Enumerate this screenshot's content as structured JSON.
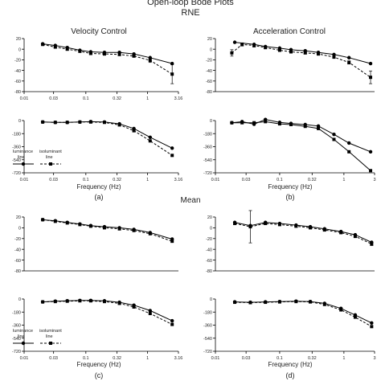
{
  "figure": {
    "title": "Open-loop Bode Plots",
    "subtitle": "RNE",
    "col_titles": [
      "Velocity Control",
      "Acceleration Control"
    ],
    "mid_title": "Mean",
    "xlabel": "Frequency (Hz)",
    "panel_labels": [
      "(a)",
      "(b)",
      "(c)",
      "(d)"
    ],
    "legend": {
      "luminance_line1": "luminance",
      "luminance_line2": "line",
      "isoluminant_line1": "isoluminant",
      "isoluminant_line2": "line"
    }
  },
  "chart_data": [
    {
      "id": "a-mag",
      "type": "line",
      "xscale": "log",
      "xlim": [
        0.01,
        3.16
      ],
      "ylim": [
        -80,
        20
      ],
      "xticks": [
        "0.01",
        "0.03",
        "0.1",
        "0.32",
        "1",
        "3.16"
      ],
      "yticks": [
        "20",
        "0",
        "-20",
        "-40",
        "-60",
        "-80"
      ],
      "series": [
        {
          "style": "solid",
          "marker": "circle",
          "x": [
            0.02,
            0.032,
            0.05,
            0.08,
            0.12,
            0.2,
            0.35,
            0.6,
            1.1,
            2.5
          ],
          "y": [
            10,
            7,
            3,
            -2,
            -5,
            -6,
            -6,
            -9,
            -16,
            -27
          ]
        },
        {
          "style": "dashed",
          "marker": "square",
          "x": [
            0.02,
            0.032,
            0.05,
            0.08,
            0.12,
            0.2,
            0.35,
            0.6,
            1.1,
            2.5
          ],
          "y": [
            9,
            4,
            0,
            -4,
            -8,
            -9,
            -10,
            -13,
            -21,
            -47
          ],
          "err": [
            2,
            2,
            2,
            2,
            2,
            2,
            2,
            2,
            4,
            18
          ]
        }
      ]
    },
    {
      "id": "b-mag",
      "type": "line",
      "xscale": "log",
      "xlim": [
        0.01,
        3.0
      ],
      "ylim": [
        -80,
        20
      ],
      "xticks": [],
      "yticks": [
        "20",
        "0",
        "-20",
        "-40",
        "-60",
        "-80"
      ],
      "series": [
        {
          "style": "solid",
          "marker": "circle",
          "x": [
            0.02,
            0.04,
            0.06,
            0.1,
            0.15,
            0.25,
            0.4,
            0.7,
            1.2,
            2.6
          ],
          "y": [
            13,
            9,
            5,
            2,
            -1,
            -3,
            -6,
            -10,
            -16,
            -27
          ]
        },
        {
          "style": "dashed",
          "marker": "square",
          "x": [
            0.018,
            0.026,
            0.04,
            0.06,
            0.1,
            0.15,
            0.25,
            0.4,
            0.7,
            1.2,
            2.6
          ],
          "y": [
            -7,
            9,
            7,
            3,
            -2,
            -5,
            -7,
            -9,
            -15,
            -25,
            -53
          ],
          "err": [
            6,
            3,
            3,
            2,
            2,
            2,
            2,
            2,
            2,
            3,
            12
          ]
        }
      ]
    },
    {
      "id": "a-phase",
      "type": "line",
      "xscale": "log",
      "xlim": [
        0.01,
        3.16
      ],
      "ylim": [
        -720,
        0
      ],
      "xticks": [
        "0.01",
        "0.03",
        "0.1",
        "0.32",
        "1",
        "3.16"
      ],
      "yticks": [
        "0",
        "-180",
        "-360",
        "-540",
        "-720"
      ],
      "series": [
        {
          "style": "solid",
          "marker": "circle",
          "x": [
            0.02,
            0.032,
            0.05,
            0.08,
            0.12,
            0.2,
            0.35,
            0.6,
            1.1,
            2.5
          ],
          "y": [
            -20,
            -25,
            -25,
            -20,
            -15,
            -20,
            -45,
            -110,
            -230,
            -380
          ]
        },
        {
          "style": "dashed",
          "marker": "square",
          "x": [
            0.02,
            0.032,
            0.05,
            0.08,
            0.12,
            0.2,
            0.35,
            0.6,
            1.1,
            2.5
          ],
          "y": [
            -20,
            -25,
            -25,
            -20,
            -20,
            -25,
            -60,
            -140,
            -280,
            -480
          ]
        }
      ]
    },
    {
      "id": "b-phase",
      "type": "line",
      "xscale": "log",
      "xlim": [
        0.01,
        3.0
      ],
      "ylim": [
        -720,
        0
      ],
      "xticks": [
        "0.01",
        "0.03",
        "0.1",
        "0.32",
        "1",
        "3"
      ],
      "yticks": [
        "0",
        "-180",
        "-360",
        "-540",
        "-720"
      ],
      "series": [
        {
          "style": "solid",
          "marker": "circle",
          "x": [
            0.018,
            0.026,
            0.04,
            0.06,
            0.1,
            0.15,
            0.25,
            0.4,
            0.7,
            1.2,
            2.6
          ],
          "y": [
            -30,
            -15,
            -50,
            15,
            -25,
            -40,
            -55,
            -75,
            -190,
            -310,
            -430
          ]
        },
        {
          "style": "solid",
          "marker": "square",
          "x": [
            0.018,
            0.026,
            0.04,
            0.06,
            0.1,
            0.15,
            0.25,
            0.4,
            0.7,
            1.2,
            2.6
          ],
          "y": [
            -30,
            -30,
            -30,
            -15,
            -45,
            -55,
            -80,
            -110,
            -260,
            -430,
            -690
          ]
        }
      ]
    },
    {
      "id": "c-mag",
      "type": "line",
      "xscale": "log",
      "xlim": [
        0.01,
        3.16
      ],
      "ylim": [
        -80,
        20
      ],
      "xticks": [],
      "yticks": [
        "20",
        "0",
        "-20",
        "-40",
        "-60",
        "-80"
      ],
      "series": [
        {
          "style": "solid",
          "marker": "circle",
          "x": [
            0.02,
            0.032,
            0.05,
            0.08,
            0.12,
            0.2,
            0.35,
            0.6,
            1.1,
            2.5
          ],
          "y": [
            15,
            13,
            10,
            7,
            4,
            2,
            0,
            -3,
            -9,
            -21
          ]
        },
        {
          "style": "dashed",
          "marker": "square",
          "x": [
            0.02,
            0.032,
            0.05,
            0.08,
            0.12,
            0.2,
            0.35,
            0.6,
            1.1,
            2.5
          ],
          "y": [
            15,
            12,
            9,
            6,
            3,
            0,
            -2,
            -5,
            -11,
            -25
          ]
        }
      ]
    },
    {
      "id": "d-mag",
      "type": "line",
      "xscale": "log",
      "xlim": [
        0.01,
        3.0
      ],
      "ylim": [
        -80,
        20
      ],
      "xticks": [],
      "yticks": [
        "20",
        "0",
        "-20",
        "-40",
        "-60",
        "-80"
      ],
      "series": [
        {
          "style": "solid",
          "marker": "circle",
          "x": [
            0.02,
            0.035,
            0.06,
            0.1,
            0.18,
            0.3,
            0.5,
            0.9,
            1.5,
            2.7
          ],
          "y": [
            10,
            4,
            10,
            8,
            5,
            2,
            -2,
            -7,
            -13,
            -27
          ]
        },
        {
          "style": "dashed",
          "marker": "square",
          "x": [
            0.02,
            0.035,
            0.06,
            0.1,
            0.18,
            0.3,
            0.5,
            0.9,
            1.5,
            2.7
          ],
          "y": [
            8,
            2,
            8,
            6,
            3,
            0,
            -4,
            -9,
            -16,
            -30
          ],
          "err": [
            2,
            30,
            2,
            2,
            2,
            2,
            2,
            2,
            2,
            3
          ]
        }
      ]
    },
    {
      "id": "c-phase",
      "type": "line",
      "xscale": "log",
      "xlim": [
        0.01,
        3.16
      ],
      "ylim": [
        -720,
        0
      ],
      "xticks": [
        "0.01",
        "0.03",
        "0.1",
        "0.32",
        "1",
        "3.16"
      ],
      "yticks": [
        "0",
        "-180",
        "-360",
        "-540",
        "-720"
      ],
      "series": [
        {
          "style": "solid",
          "marker": "circle",
          "x": [
            0.02,
            0.032,
            0.05,
            0.08,
            0.12,
            0.2,
            0.35,
            0.6,
            1.1,
            2.5
          ],
          "y": [
            -40,
            -30,
            -25,
            -20,
            -20,
            -25,
            -45,
            -85,
            -160,
            -300
          ]
        },
        {
          "style": "dashed",
          "marker": "square",
          "x": [
            0.02,
            0.032,
            0.05,
            0.08,
            0.12,
            0.2,
            0.35,
            0.6,
            1.1,
            2.5
          ],
          "y": [
            -40,
            -35,
            -30,
            -25,
            -25,
            -35,
            -60,
            -110,
            -200,
            -350
          ]
        }
      ]
    },
    {
      "id": "d-phase",
      "type": "line",
      "xscale": "log",
      "xlim": [
        0.01,
        3.0
      ],
      "ylim": [
        -720,
        0
      ],
      "xticks": [
        "0.01",
        "0.03",
        "0.1",
        "0.32",
        "1",
        "3"
      ],
      "yticks": [
        "0",
        "-180",
        "-360",
        "-540",
        "-720"
      ],
      "series": [
        {
          "style": "solid",
          "marker": "circle",
          "x": [
            0.02,
            0.035,
            0.06,
            0.1,
            0.18,
            0.3,
            0.5,
            0.9,
            1.5,
            2.7
          ],
          "y": [
            -40,
            -45,
            -40,
            -35,
            -30,
            -35,
            -60,
            -130,
            -220,
            -330
          ]
        },
        {
          "style": "dashed",
          "marker": "square",
          "x": [
            0.02,
            0.035,
            0.06,
            0.1,
            0.18,
            0.3,
            0.5,
            0.9,
            1.5,
            2.7
          ],
          "y": [
            -45,
            -50,
            -45,
            -40,
            -35,
            -40,
            -75,
            -150,
            -250,
            -380
          ]
        }
      ]
    }
  ]
}
